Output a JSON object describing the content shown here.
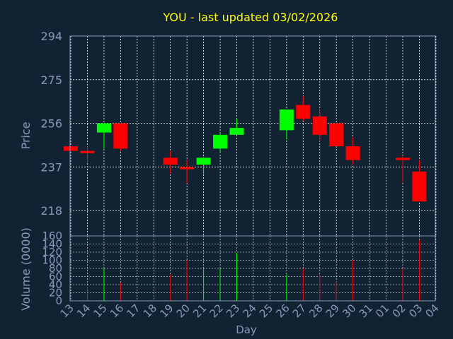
{
  "chart_data": {
    "type": "candlestick",
    "title": "YOU - last updated 03/02/2026",
    "xlabel": "Day",
    "ylabel": "Price",
    "volume_label": "Volume (0000)",
    "grid": true,
    "price_ylim": [
      207,
      294
    ],
    "price_ticks": [
      218,
      237,
      256,
      275,
      294
    ],
    "volume_ylim": [
      0,
      160
    ],
    "volume_ticks": [
      0,
      20,
      40,
      60,
      80,
      100,
      120,
      140,
      160
    ],
    "days": [
      "13",
      "14",
      "15",
      "16",
      "17",
      "18",
      "19",
      "20",
      "21",
      "22",
      "23",
      "24",
      "25",
      "26",
      "27",
      "28",
      "29",
      "30",
      "31",
      "01",
      "02",
      "03",
      "04"
    ],
    "candles": [
      {
        "day": "13",
        "open": 246,
        "high": 246,
        "low": 244,
        "close": 244,
        "volume": 0
      },
      {
        "day": "14",
        "open": 244,
        "high": 246,
        "low": 239,
        "close": 243,
        "volume": 35
      },
      {
        "day": "15",
        "open": 252,
        "high": 256,
        "low": 245,
        "close": 256,
        "volume": 80
      },
      {
        "day": "16",
        "open": 256,
        "high": 256,
        "low": 244,
        "close": 245,
        "volume": 45
      },
      {
        "day": "19",
        "open": 241,
        "high": 244,
        "low": 234,
        "close": 238,
        "volume": 65
      },
      {
        "day": "20",
        "open": 237,
        "high": 240,
        "low": 230,
        "close": 236,
        "volume": 100
      },
      {
        "day": "21",
        "open": 238,
        "high": 241,
        "low": 234,
        "close": 241,
        "volume": 80
      },
      {
        "day": "22",
        "open": 245,
        "high": 252,
        "low": 243,
        "close": 251,
        "volume": 80
      },
      {
        "day": "23",
        "open": 251,
        "high": 258,
        "low": 251,
        "close": 254,
        "volume": 118
      },
      {
        "day": "26",
        "open": 253,
        "high": 262,
        "low": 249,
        "close": 262,
        "volume": 65
      },
      {
        "day": "27",
        "open": 264,
        "high": 268,
        "low": 257,
        "close": 258,
        "volume": 80
      },
      {
        "day": "28",
        "open": 259,
        "high": 262,
        "low": 248,
        "close": 251,
        "volume": 65
      },
      {
        "day": "29",
        "open": 256,
        "high": 256,
        "low": 246,
        "close": 246,
        "volume": 48
      },
      {
        "day": "30",
        "open": 246,
        "high": 250,
        "low": 238,
        "close": 240,
        "volume": 100
      },
      {
        "day": "02",
        "open": 241,
        "high": 242,
        "low": 230,
        "close": 240,
        "volume": 80
      },
      {
        "day": "03",
        "open": 235,
        "high": 240,
        "low": 222,
        "close": 222,
        "volume": 150
      }
    ],
    "colors": {
      "background": "#112233",
      "axis": "#8899bb",
      "grid": "#ffffff",
      "title": "#ffff00",
      "up": "#00ff00",
      "down": "#ff0000"
    }
  }
}
